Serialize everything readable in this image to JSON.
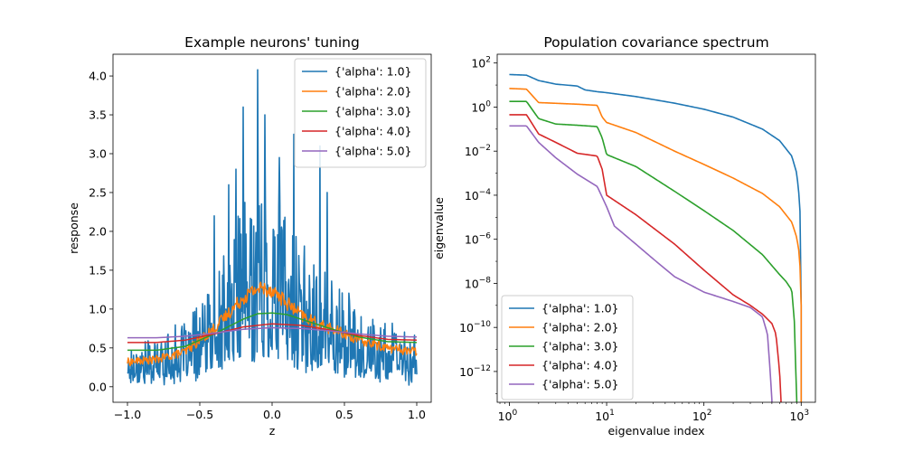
{
  "chart_data": [
    {
      "type": "line",
      "title": "Example neurons' tuning",
      "xlabel": "z",
      "ylabel": "response",
      "xlim": [
        -1.1,
        1.1
      ],
      "ylim": [
        -0.2,
        4.28
      ],
      "xticks": [
        -1.0,
        -0.5,
        0.0,
        0.5,
        1.0
      ],
      "xtick_labels": [
        "−1.0",
        "−0.5",
        "0.0",
        "0.5",
        "1.0"
      ],
      "yticks": [
        0.0,
        0.5,
        1.0,
        1.5,
        2.0,
        2.5,
        3.0,
        3.5,
        4.0
      ],
      "ytick_labels": [
        "0.0",
        "0.5",
        "1.0",
        "1.5",
        "2.0",
        "2.5",
        "3.0",
        "3.5",
        "4.0"
      ],
      "legend_position": "upper right",
      "grid": false,
      "series": [
        {
          "name": "{'alpha': 1.0}",
          "color": "#1f77b4",
          "noisy": true,
          "x": [
            -1.0,
            -0.8,
            -0.6,
            -0.4,
            -0.3,
            -0.2,
            -0.1,
            0.0,
            0.1,
            0.2,
            0.3,
            0.4,
            0.5,
            0.6,
            0.8,
            1.0
          ],
          "y": [
            0.3,
            0.35,
            0.45,
            0.75,
            1.1,
            1.35,
            1.55,
            1.5,
            1.3,
            1.05,
            0.9,
            0.85,
            0.7,
            0.55,
            0.45,
            0.35
          ],
          "peaks": [
            {
              "x": -0.1,
              "y": 4.08
            },
            {
              "x": -0.2,
              "y": 3.6
            },
            {
              "x": -0.05,
              "y": 3.5
            },
            {
              "x": 0.15,
              "y": 3.25
            },
            {
              "x": 0.33,
              "y": 3.1
            },
            {
              "x": 0.05,
              "y": 2.95
            },
            {
              "x": -0.25,
              "y": 2.8
            },
            {
              "x": -0.3,
              "y": 2.6
            },
            {
              "x": 0.38,
              "y": 2.5
            },
            {
              "x": -0.4,
              "y": 2.2
            }
          ]
        },
        {
          "name": "{'alpha': 2.0}",
          "color": "#ff7f0e",
          "noisy": true,
          "x": [
            -1.0,
            -0.8,
            -0.6,
            -0.5,
            -0.4,
            -0.3,
            -0.2,
            -0.1,
            0.0,
            0.1,
            0.2,
            0.3,
            0.4,
            0.5,
            0.6,
            0.8,
            1.0
          ],
          "y": [
            0.32,
            0.35,
            0.45,
            0.6,
            0.75,
            0.95,
            1.15,
            1.27,
            1.25,
            1.08,
            0.92,
            0.82,
            0.75,
            0.68,
            0.6,
            0.5,
            0.45
          ]
        },
        {
          "name": "{'alpha': 3.0}",
          "color": "#2ca02c",
          "noisy": false,
          "x": [
            -1.0,
            -0.8,
            -0.6,
            -0.4,
            -0.2,
            -0.1,
            0.0,
            0.1,
            0.2,
            0.4,
            0.6,
            0.8,
            1.0
          ],
          "y": [
            0.47,
            0.47,
            0.52,
            0.68,
            0.87,
            0.94,
            0.95,
            0.93,
            0.87,
            0.75,
            0.64,
            0.58,
            0.57
          ]
        },
        {
          "name": "{'alpha': 4.0}",
          "color": "#d62728",
          "noisy": false,
          "x": [
            -1.0,
            -0.8,
            -0.6,
            -0.4,
            -0.2,
            0.0,
            0.2,
            0.4,
            0.6,
            0.8,
            1.0
          ],
          "y": [
            0.57,
            0.57,
            0.6,
            0.68,
            0.77,
            0.81,
            0.79,
            0.73,
            0.66,
            0.61,
            0.6
          ]
        },
        {
          "name": "{'alpha': 5.0}",
          "color": "#9467bd",
          "noisy": false,
          "x": [
            -1.0,
            -0.8,
            -0.6,
            -0.4,
            -0.2,
            0.0,
            0.2,
            0.4,
            0.6,
            0.8,
            1.0
          ],
          "y": [
            0.63,
            0.63,
            0.65,
            0.69,
            0.74,
            0.76,
            0.75,
            0.72,
            0.68,
            0.65,
            0.64
          ]
        }
      ]
    },
    {
      "type": "line",
      "title": "Population covariance spectrum",
      "xlabel": "eigenvalue index",
      "ylabel": "eigenvalue",
      "xscale": "log",
      "yscale": "log",
      "xlim": [
        0.75,
        1400
      ],
      "ylim": [
        4e-14,
        250
      ],
      "xticks": [
        1,
        10,
        100,
        1000
      ],
      "xtick_labels": [
        [
          "10",
          "0"
        ],
        [
          "10",
          "1"
        ],
        [
          "10",
          "2"
        ],
        [
          "10",
          "3"
        ]
      ],
      "yticks": [
        1e-12,
        1e-10,
        1e-08,
        1e-06,
        0.0001,
        0.01,
        1,
        100
      ],
      "ytick_labels": [
        [
          "10",
          "−12"
        ],
        [
          "10",
          "−10"
        ],
        [
          "10",
          "−8"
        ],
        [
          "10",
          "−6"
        ],
        [
          "10",
          "−4"
        ],
        [
          "10",
          "−2"
        ],
        [
          "10",
          "0"
        ],
        [
          "10",
          "2"
        ]
      ],
      "legend_position": "lower left",
      "grid": false,
      "series": [
        {
          "name": "{'alpha': 1.0}",
          "color": "#1f77b4",
          "x": [
            1,
            1.5,
            2,
            3,
            5,
            6,
            8,
            10,
            20,
            50,
            100,
            200,
            400,
            600,
            800,
            900,
            950,
            980,
            995,
            1000
          ],
          "y": [
            30,
            28,
            16,
            11,
            9,
            6,
            5,
            4.5,
            3,
            1.5,
            0.8,
            0.35,
            0.1,
            0.03,
            0.006,
            0.001,
            0.0001,
            1e-05,
            1e-07,
            1e-09
          ]
        },
        {
          "name": "{'alpha': 2.0}",
          "color": "#ff7f0e",
          "x": [
            1,
            1.5,
            2,
            5,
            8,
            9,
            10,
            20,
            50,
            100,
            200,
            400,
            600,
            800,
            900,
            960,
            990,
            1000
          ],
          "y": [
            7,
            6.5,
            1.6,
            1.35,
            1.2,
            0.35,
            0.2,
            0.07,
            0.01,
            0.0025,
            0.0006,
            0.00012,
            3e-05,
            6e-06,
            1.2e-06,
            2e-07,
            1e-08,
            1e-09
          ]
        },
        {
          "name": "{'alpha': 3.0}",
          "color": "#2ca02c",
          "x": [
            1,
            1.5,
            2,
            3,
            5,
            8,
            9,
            10,
            20,
            50,
            100,
            200,
            400,
            600,
            700,
            800,
            850,
            880,
            900
          ],
          "y": [
            1.8,
            1.8,
            0.3,
            0.17,
            0.15,
            0.13,
            0.04,
            0.007,
            0.002,
            0.00015,
            2e-05,
            2.5e-06,
            2e-07,
            2.5e-08,
            1.2e-08,
            5e-09,
            2e-10,
            1e-12,
            5e-14
          ]
        },
        {
          "name": "{'alpha': 4.0}",
          "color": "#d62728",
          "x": [
            1,
            1.5,
            2,
            3,
            5,
            8,
            9,
            10,
            20,
            50,
            100,
            200,
            300,
            400,
            500,
            550,
            600,
            620
          ],
          "y": [
            0.45,
            0.45,
            0.06,
            0.025,
            0.008,
            0.006,
            0.0015,
            0.0001,
            1.3e-05,
            6e-07,
            4e-08,
            3e-09,
            1e-09,
            4e-10,
            1.5e-10,
            5e-11,
            1e-12,
            5e-14
          ]
        },
        {
          "name": "{'alpha': 5.0}",
          "color": "#9467bd",
          "x": [
            1,
            1.5,
            2,
            3,
            5,
            8,
            10,
            12,
            20,
            30,
            50,
            100,
            200,
            300,
            400,
            450,
            480,
            500
          ],
          "y": [
            0.14,
            0.14,
            0.025,
            0.005,
            0.0009,
            0.00025,
            3e-05,
            4e-06,
            6e-07,
            1.3e-07,
            2e-08,
            4e-09,
            1.5e-09,
            8e-10,
            3e-10,
            5e-11,
            1e-12,
            5e-14
          ]
        }
      ]
    }
  ]
}
